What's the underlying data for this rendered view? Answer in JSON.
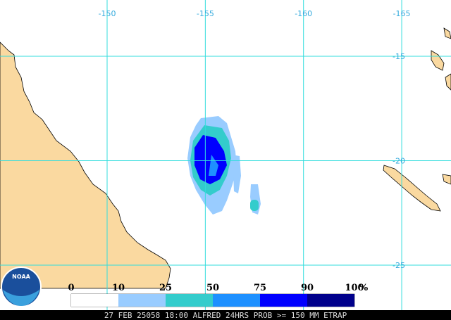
{
  "map": {
    "lon_labels": [
      -150,
      -155,
      -160,
      -165
    ],
    "lat_labels": [
      -15,
      -20,
      -25
    ],
    "legend": {
      "ticks": [
        0,
        10,
        25,
        50,
        75,
        90,
        100
      ],
      "unit": "%",
      "colors": [
        "#ffffff",
        "#99ccff",
        "#33cccc",
        "#1e90ff",
        "#0000ff",
        "#00008b"
      ]
    },
    "logo": "NOAA",
    "caption": "27 FEB 25058 18:00 ALFRED 24HRS PROB >= 150 MM ETRAP"
  }
}
